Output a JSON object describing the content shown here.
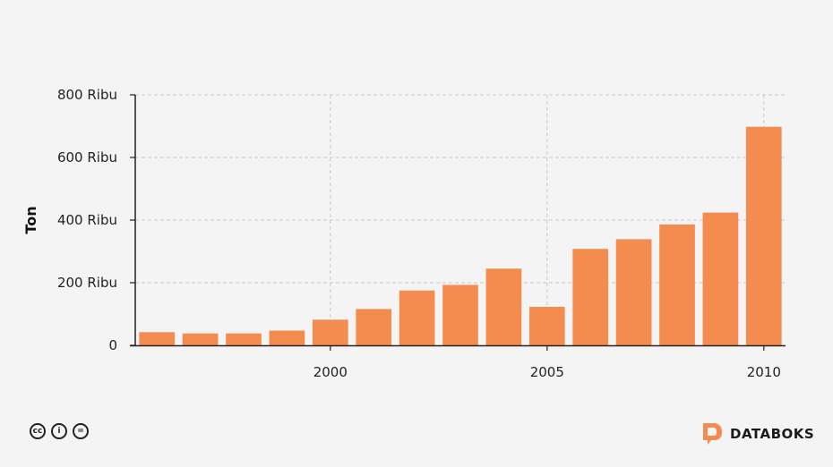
{
  "chart_data": {
    "type": "bar",
    "x": [
      1996,
      1997,
      1998,
      1999,
      2000,
      2001,
      2002,
      2003,
      2004,
      2005,
      2006,
      2007,
      2008,
      2009,
      2010
    ],
    "values": [
      42000,
      38000,
      38000,
      47000,
      82000,
      116000,
      175000,
      193000,
      245000,
      123000,
      308000,
      339000,
      386000,
      424000,
      698000
    ],
    "xticks": [
      2000,
      2005,
      2010
    ],
    "yticks": [
      0,
      200000,
      400000,
      600000,
      800000
    ],
    "ytick_labels": [
      "0",
      "200 Ribu",
      "400 Ribu",
      "600 Ribu",
      "800 Ribu"
    ],
    "ylim": [
      0,
      800000
    ],
    "ylabel": "Ton",
    "xlabel": "",
    "grid": true,
    "bar_color": "#f48c4f"
  },
  "footer": {
    "license_icons": [
      "cc-icon",
      "by-icon",
      "nd-icon"
    ],
    "license_glyphs": [
      "cc",
      "i",
      "="
    ],
    "brand": "DATABOKS",
    "brand_color": "#f48c4f"
  }
}
